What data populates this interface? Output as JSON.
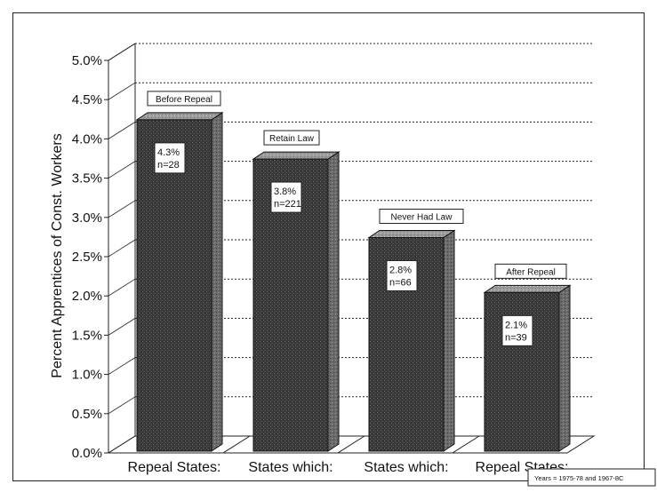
{
  "chart_data": {
    "type": "bar",
    "ylabel": "Percent Apprentices of Const. Workers",
    "y_ticks": [
      "0.0%",
      "0.5%",
      "1.0%",
      "1.5%",
      "2.0%",
      "2.5%",
      "3.0%",
      "3.5%",
      "4.0%",
      "4.5%",
      "5.0%"
    ],
    "ylim": [
      0,
      5.0
    ],
    "grid": true,
    "categories": [
      "Repeal States:",
      "States which:",
      "States which:",
      "Repeal States:"
    ],
    "callouts": [
      "Before Repeal",
      "Retain Law",
      "Never Had Law",
      "After Repeal"
    ],
    "values": [
      4.3,
      3.8,
      2.8,
      2.1
    ],
    "value_labels": [
      "4.3%",
      "3.8%",
      "2.8%",
      "2.1%"
    ],
    "n_labels": [
      "n=28",
      "n=221",
      "n=66",
      "n=39"
    ],
    "note": "Years = 1975-78 and 1967-8C",
    "bar_color": "#3a3a3a"
  }
}
